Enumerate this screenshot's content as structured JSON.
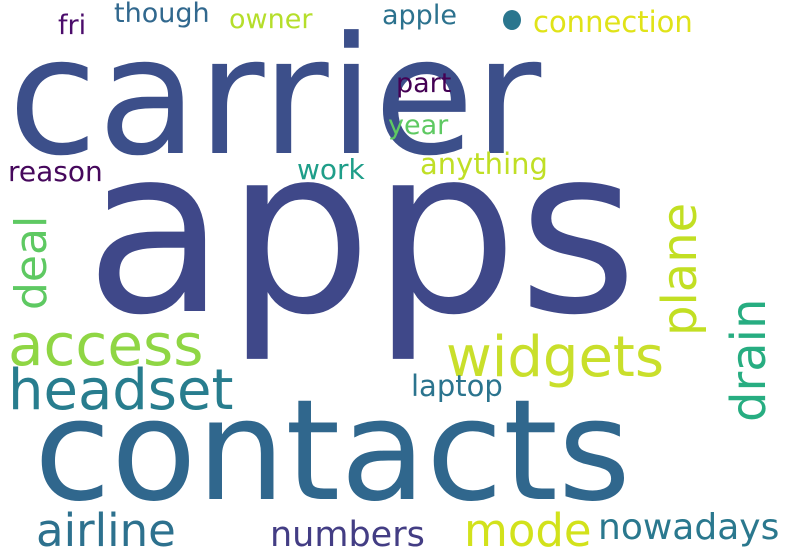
{
  "words": [
    {
      "text": "carrier",
      "color": "#3c4f8a"
    },
    {
      "text": "apps",
      "color": "#3f4889"
    },
    {
      "text": "contacts",
      "color": "#30678d"
    },
    {
      "text": "widgets",
      "color": "#c9df2b"
    },
    {
      "text": "access",
      "color": "#8fd644"
    },
    {
      "text": "headset",
      "color": "#287d8e"
    },
    {
      "text": "airline",
      "color": "#2d718e"
    },
    {
      "text": "mode",
      "color": "#d2e21b"
    },
    {
      "text": "numbers",
      "color": "#433d84"
    },
    {
      "text": "nowadays",
      "color": "#2a788e"
    },
    {
      "text": "plane",
      "color": "#c2df23"
    },
    {
      "text": "drain",
      "color": "#27ad81"
    },
    {
      "text": "deal",
      "color": "#5ec962"
    },
    {
      "text": "laptop",
      "color": "#2b748e"
    },
    {
      "text": "work",
      "color": "#1f9e89"
    },
    {
      "text": "anything",
      "color": "#c0df25"
    },
    {
      "text": "reason",
      "color": "#46085c"
    },
    {
      "text": "year",
      "color": "#5ec962"
    },
    {
      "text": "part",
      "color": "#440154"
    },
    {
      "text": "connection",
      "color": "#e0e318"
    },
    {
      "text": "apple",
      "color": "#2c728e"
    },
    {
      "text": "owner",
      "color": "#b5de2b"
    },
    {
      "text": "though",
      "color": "#31688e"
    },
    {
      "text": "fri",
      "color": "#4b0c6b"
    }
  ],
  "dot": {
    "color": "#2a768e"
  }
}
